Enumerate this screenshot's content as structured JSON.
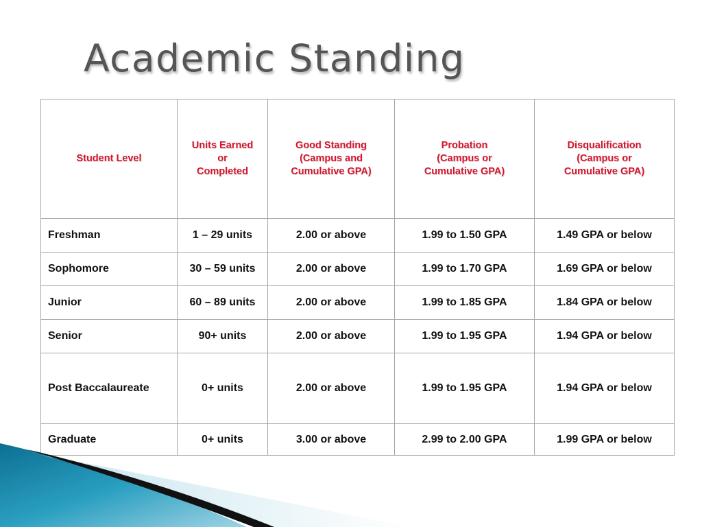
{
  "title": "Academic Standing",
  "table": {
    "headers": [
      [
        "Student Level"
      ],
      [
        "Units Earned",
        "or",
        "Completed"
      ],
      [
        "Good Standing",
        "(Campus and",
        "Cumulative GPA)"
      ],
      [
        "Probation",
        "(Campus or",
        "Cumulative GPA)"
      ],
      [
        "Disqualification",
        "(Campus or",
        "Cumulative GPA)"
      ]
    ],
    "rows": [
      [
        "Freshman",
        "1 – 29 units",
        "2.00 or above",
        "1.99 to 1.50 GPA",
        "1.49 GPA or below"
      ],
      [
        "Sophomore",
        "30 – 59 units",
        "2.00 or above",
        "1.99 to 1.70 GPA",
        "1.69 GPA or below"
      ],
      [
        "Junior",
        "60 – 89 units",
        "2.00 or above",
        "1.99 to 1.85 GPA",
        "1.84 GPA or below"
      ],
      [
        "Senior",
        "90+ units",
        "2.00 or above",
        "1.99 to 1.95 GPA",
        "1.94 GPA or below"
      ],
      [
        "Post Baccalaureate",
        "0+ units",
        "2.00 or above",
        "1.99 to 1.95 GPA",
        "1.94 GPA or below"
      ],
      [
        "Graduate",
        "0+ units",
        "3.00 or above",
        "2.99 to 2.00 GPA",
        "1.99 GPA or below"
      ]
    ]
  },
  "colors": {
    "title": "#555555",
    "header_text": "#d7142c",
    "grid": "#a6a6a6",
    "accent_teal": "#1f8fb0",
    "accent_black": "#111111"
  }
}
